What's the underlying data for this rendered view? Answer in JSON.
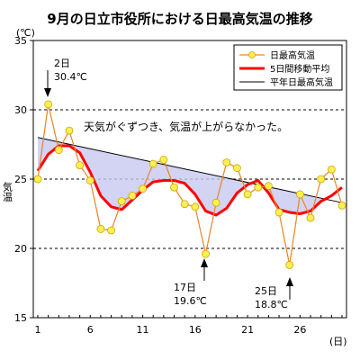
{
  "chart_data": {
    "type": "line",
    "title": "9月の日立市役所における日最高気温の推移",
    "y_unit": "(℃)",
    "ylabel": "気温",
    "x_unit": "(日)",
    "ylim": [
      15,
      35
    ],
    "xlim": [
      1,
      30
    ],
    "yticks": [
      15,
      20,
      25,
      30,
      35
    ],
    "xticks": [
      1,
      6,
      11,
      16,
      21,
      26
    ],
    "grid": "dashed horizontal lines at 20, 25, 30",
    "legend_position": "top-right",
    "note": "天気がぐずつき、気温が上がらなかった。",
    "shading": "area between normal line and 5-day moving average shaded light blue",
    "series": [
      {
        "name": "日最高気温",
        "color": "#e8842a",
        "marker_color": "#ffee55",
        "x": [
          1,
          2,
          3,
          4,
          5,
          6,
          7,
          8,
          9,
          10,
          11,
          12,
          13,
          14,
          15,
          16,
          17,
          18,
          19,
          20,
          21,
          22,
          23,
          24,
          25,
          26,
          27,
          28,
          29,
          30
        ],
        "values": [
          25.0,
          30.4,
          27.1,
          28.5,
          26.0,
          24.9,
          21.4,
          21.3,
          23.4,
          23.8,
          24.3,
          26.1,
          26.4,
          24.4,
          23.2,
          23.0,
          19.6,
          23.3,
          26.2,
          25.8,
          23.9,
          24.4,
          24.5,
          22.6,
          18.8,
          23.9,
          22.2,
          25.0,
          25.7,
          23.1
        ]
      },
      {
        "name": "5日間移動平均",
        "color": "#ff0000",
        "x": [
          1,
          2,
          3,
          4,
          5,
          6,
          7,
          8,
          9,
          10,
          11,
          12,
          13,
          14,
          15,
          16,
          17,
          18,
          19,
          20,
          21,
          22,
          23,
          24,
          25,
          26,
          27,
          28,
          29,
          30
        ],
        "values": [
          25.6,
          26.8,
          27.4,
          27.4,
          26.9,
          25.5,
          23.8,
          23.0,
          22.8,
          23.5,
          24.2,
          24.8,
          24.9,
          24.9,
          24.7,
          23.9,
          22.7,
          22.4,
          22.9,
          24.0,
          24.6,
          24.9,
          24.0,
          22.8,
          22.6,
          22.5,
          22.7,
          23.4,
          23.8,
          24.4
        ]
      },
      {
        "name": "平年日最高気温",
        "color": "#000000",
        "x": [
          1,
          30
        ],
        "values": [
          28.0,
          23.3
        ]
      }
    ],
    "annotations": [
      {
        "day_label": "2日",
        "temp_label": "30.4℃"
      },
      {
        "day_label": "17日",
        "temp_label": "19.6℃"
      },
      {
        "day_label": "25日",
        "temp_label": "18.8℃"
      }
    ]
  }
}
